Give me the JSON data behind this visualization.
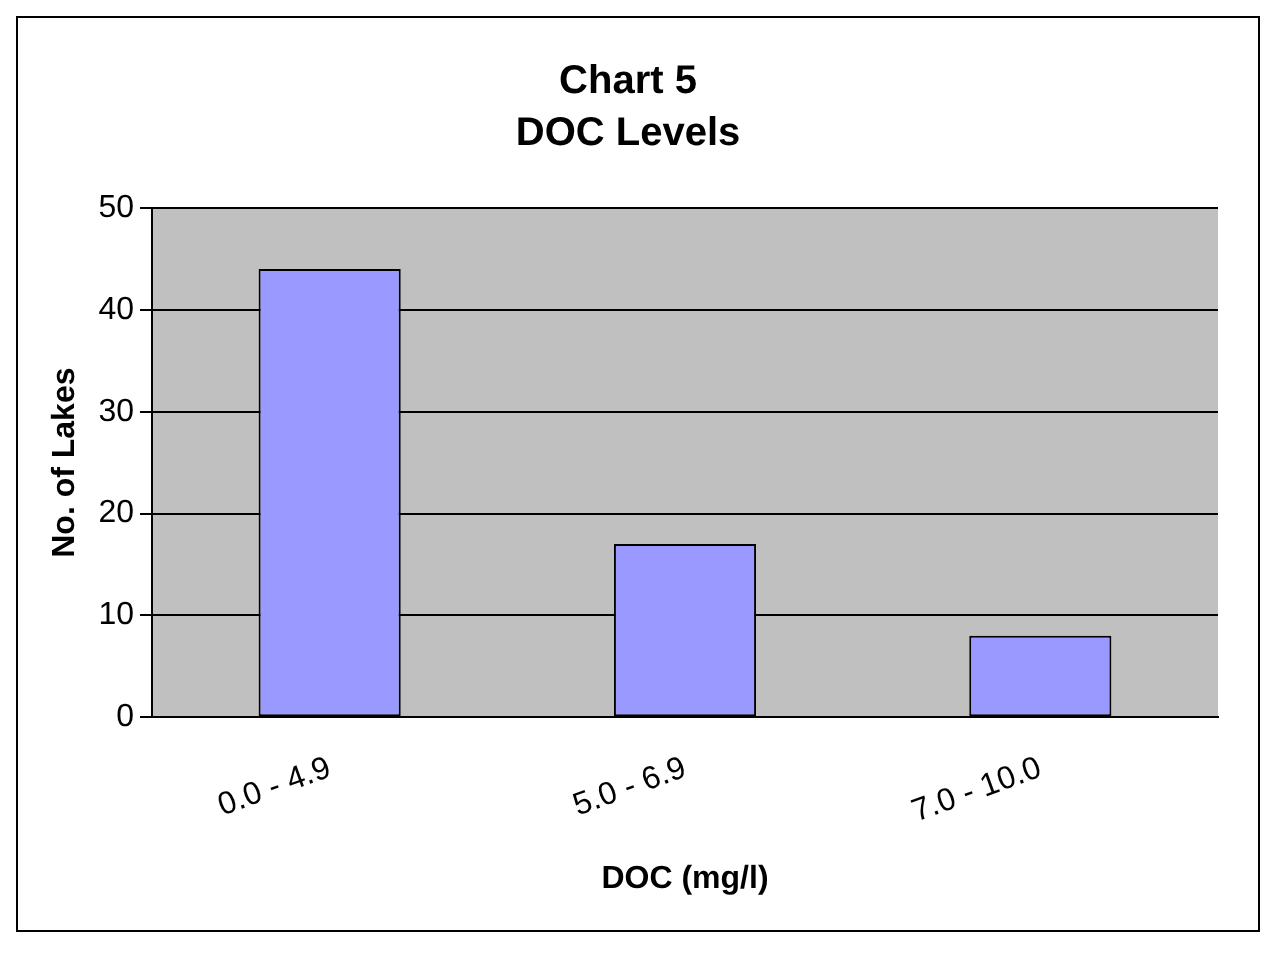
{
  "chart_data": {
    "type": "bar",
    "title": "Chart 5",
    "subtitle": "DOC Levels",
    "xlabel": "DOC (mg/l)",
    "ylabel": "No. of Lakes",
    "categories": [
      "0.0 - 4.9",
      "5.0 - 6.9",
      "7.0 - 10.0"
    ],
    "values": [
      44,
      17,
      8
    ],
    "color": "#9999ff",
    "ylim": [
      0,
      50
    ],
    "yticks": [
      0,
      10,
      20,
      30,
      40,
      50
    ],
    "grid": "y",
    "legend": false
  }
}
